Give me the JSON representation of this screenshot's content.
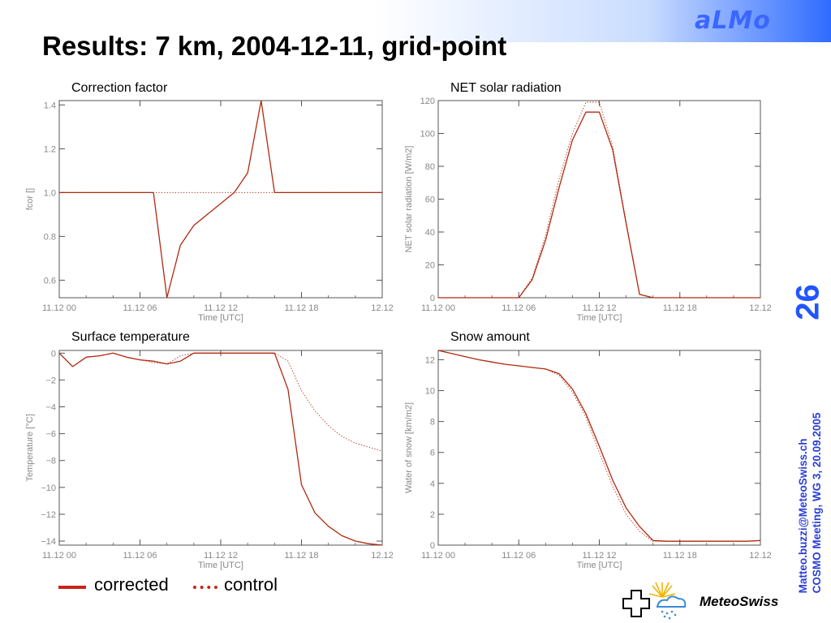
{
  "header": {
    "brand": "aLMo",
    "title": "Results: 7 km,  2004-12-11, grid-point",
    "slide_number": "26",
    "footer_line1": "Matteo.buzzi@MeteoSwiss.ch",
    "footer_line2": "COSMO Meeting, WG 3, 20.09.2005",
    "logo_text": "MeteoSwiss"
  },
  "legend": {
    "corrected": "corrected",
    "control": "control"
  },
  "colors": {
    "series": "#b02a10",
    "axis": "#555555",
    "tick_text": "#888888",
    "accent_blue": "#2255ff"
  },
  "chart_data": [
    {
      "type": "line",
      "title": "Correction factor",
      "xlabel": "Time [UTC]",
      "ylabel": "fcor []",
      "xlim": [
        0,
        24
      ],
      "ylim": [
        0.52,
        1.42
      ],
      "xticks": [
        0,
        6,
        12,
        18,
        24
      ],
      "xtick_labels": [
        "11.12 00",
        "11.12 06",
        "11.12 12",
        "11.12 18",
        "12.12"
      ],
      "yticks": [
        0.6,
        0.8,
        1.0,
        1.2,
        1.4
      ],
      "ytick_labels": [
        "0.6",
        "0.8",
        "1.0",
        "1.2",
        "1.4"
      ],
      "series": [
        {
          "id": "corrected",
          "style": "solid",
          "x": [
            0,
            1,
            2,
            3,
            4,
            5,
            6,
            7,
            8,
            9,
            10,
            11,
            12,
            13,
            14,
            15,
            16,
            17,
            18,
            19,
            20,
            21,
            22,
            23,
            24
          ],
          "y": [
            1,
            1,
            1,
            1,
            1,
            1,
            1,
            1,
            0.52,
            0.76,
            0.85,
            0.9,
            0.95,
            1.0,
            1.09,
            1.42,
            1,
            1,
            1,
            1,
            1,
            1,
            1,
            1,
            1
          ]
        },
        {
          "id": "control",
          "style": "dotted",
          "x": [
            0,
            24
          ],
          "y": [
            1,
            1
          ]
        }
      ]
    },
    {
      "type": "line",
      "title": "NET solar radiation",
      "xlabel": "Time [UTC]",
      "ylabel": "NET solar radiation [W/m2]",
      "xlim": [
        0,
        24
      ],
      "ylim": [
        0,
        120
      ],
      "xticks": [
        0,
        6,
        12,
        18,
        24
      ],
      "xtick_labels": [
        "11.12 00",
        "11.12 06",
        "11.12 12",
        "11.12 18",
        "12.12"
      ],
      "yticks": [
        0,
        20,
        40,
        60,
        80,
        100,
        120
      ],
      "ytick_labels": [
        "0",
        "20",
        "40",
        "60",
        "80",
        "100",
        "120"
      ],
      "series": [
        {
          "id": "corrected",
          "style": "solid",
          "x": [
            0,
            1,
            2,
            3,
            4,
            5,
            6,
            7,
            8,
            9,
            10,
            11,
            12,
            13,
            14,
            15,
            16,
            17,
            18,
            19,
            20,
            21,
            22,
            23,
            24
          ],
          "y": [
            0,
            0,
            0,
            0,
            0,
            0,
            0,
            11,
            35,
            67,
            96,
            113,
            113,
            90,
            45,
            2,
            0,
            0,
            0,
            0,
            0,
            0,
            0,
            0,
            0
          ]
        },
        {
          "id": "control",
          "style": "dotted",
          "x": [
            0,
            1,
            2,
            3,
            4,
            5,
            6,
            7,
            8,
            9,
            10,
            11,
            12,
            13,
            14,
            15,
            16,
            17,
            18,
            19,
            20,
            21,
            22,
            23,
            24
          ],
          "y": [
            0,
            0,
            0,
            0,
            0,
            0,
            0,
            12,
            38,
            72,
            100,
            119,
            119,
            92,
            46,
            2,
            0,
            0,
            0,
            0,
            0,
            0,
            0,
            0,
            0
          ]
        }
      ]
    },
    {
      "type": "line",
      "title": "Surface temperature",
      "xlabel": "Time [UTC]",
      "ylabel": "Temperature [°C]",
      "xlim": [
        0,
        24
      ],
      "ylim": [
        -14.3,
        0.2
      ],
      "xticks": [
        0,
        6,
        12,
        18,
        24
      ],
      "xtick_labels": [
        "11.12 00",
        "11.12 06",
        "11.12 12",
        "11.12 18",
        "12.12"
      ],
      "yticks": [
        0,
        -2,
        -4,
        -6,
        -8,
        -10,
        -12,
        -14
      ],
      "ytick_labels": [
        "0",
        "−2",
        "−4",
        "−6",
        "−8",
        "−10",
        "−12",
        "−14"
      ],
      "series": [
        {
          "id": "corrected",
          "style": "solid",
          "x": [
            0,
            1,
            2,
            3,
            4,
            5,
            6,
            7,
            8,
            9,
            10,
            11,
            12,
            13,
            14,
            15,
            16,
            17,
            18,
            19,
            20,
            21,
            22,
            23,
            24
          ],
          "y": [
            0,
            -1,
            -0.3,
            -0.2,
            0,
            -0.3,
            -0.5,
            -0.6,
            -0.8,
            -0.6,
            0,
            0,
            0,
            0,
            0,
            0,
            0,
            -2.7,
            -9.8,
            -11.9,
            -12.9,
            -13.6,
            -14.0,
            -14.2,
            -14.3
          ]
        },
        {
          "id": "control",
          "style": "dotted",
          "x": [
            0,
            1,
            2,
            3,
            4,
            5,
            6,
            7,
            8,
            9,
            10,
            11,
            12,
            13,
            14,
            15,
            16,
            17,
            18,
            19,
            20,
            21,
            22,
            23,
            24
          ],
          "y": [
            0,
            -1,
            -0.3,
            -0.2,
            0,
            -0.3,
            -0.5,
            -0.7,
            -0.8,
            -0.2,
            0,
            0,
            0,
            0,
            0,
            0,
            0,
            -0.6,
            -2.8,
            -4.3,
            -5.4,
            -6.2,
            -6.7,
            -7.0,
            -7.3
          ]
        }
      ]
    },
    {
      "type": "line",
      "title": "Snow amount",
      "xlabel": "Time [UTC]",
      "ylabel": "Water of snow [km/m2]",
      "xlim": [
        0,
        24
      ],
      "ylim": [
        0,
        12.6
      ],
      "xticks": [
        0,
        6,
        12,
        18,
        24
      ],
      "xtick_labels": [
        "11.12 00",
        "11.12 06",
        "11.12 12",
        "11.12 18",
        "12.12"
      ],
      "yticks": [
        0,
        2,
        4,
        6,
        8,
        10,
        12
      ],
      "ytick_labels": [
        "0",
        "2",
        "4",
        "6",
        "8",
        "10",
        "12"
      ],
      "series": [
        {
          "id": "corrected",
          "style": "solid",
          "x": [
            0,
            1,
            2,
            3,
            4,
            5,
            6,
            7,
            8,
            9,
            10,
            11,
            12,
            13,
            14,
            15,
            16,
            17,
            18,
            19,
            20,
            21,
            22,
            23,
            24
          ],
          "y": [
            12.6,
            12.4,
            12.2,
            12.0,
            11.85,
            11.7,
            11.6,
            11.5,
            11.4,
            11.1,
            10.1,
            8.5,
            6.4,
            4.2,
            2.4,
            1.2,
            0.3,
            0.25,
            0.25,
            0.25,
            0.25,
            0.25,
            0.25,
            0.25,
            0.3
          ]
        },
        {
          "id": "control",
          "style": "dotted",
          "x": [
            0,
            1,
            2,
            3,
            4,
            5,
            6,
            7,
            8,
            9,
            10,
            11,
            12,
            13,
            14,
            15,
            16,
            17,
            18,
            19,
            20,
            21,
            22,
            23,
            24
          ],
          "y": [
            12.6,
            12.4,
            12.2,
            12.0,
            11.85,
            11.7,
            11.6,
            11.5,
            11.4,
            11.0,
            9.9,
            8.3,
            6.0,
            3.8,
            2.0,
            0.9,
            0.25,
            0.25,
            0.25,
            0.25,
            0.25,
            0.25,
            0.25,
            0.25,
            0.3
          ]
        }
      ]
    }
  ]
}
